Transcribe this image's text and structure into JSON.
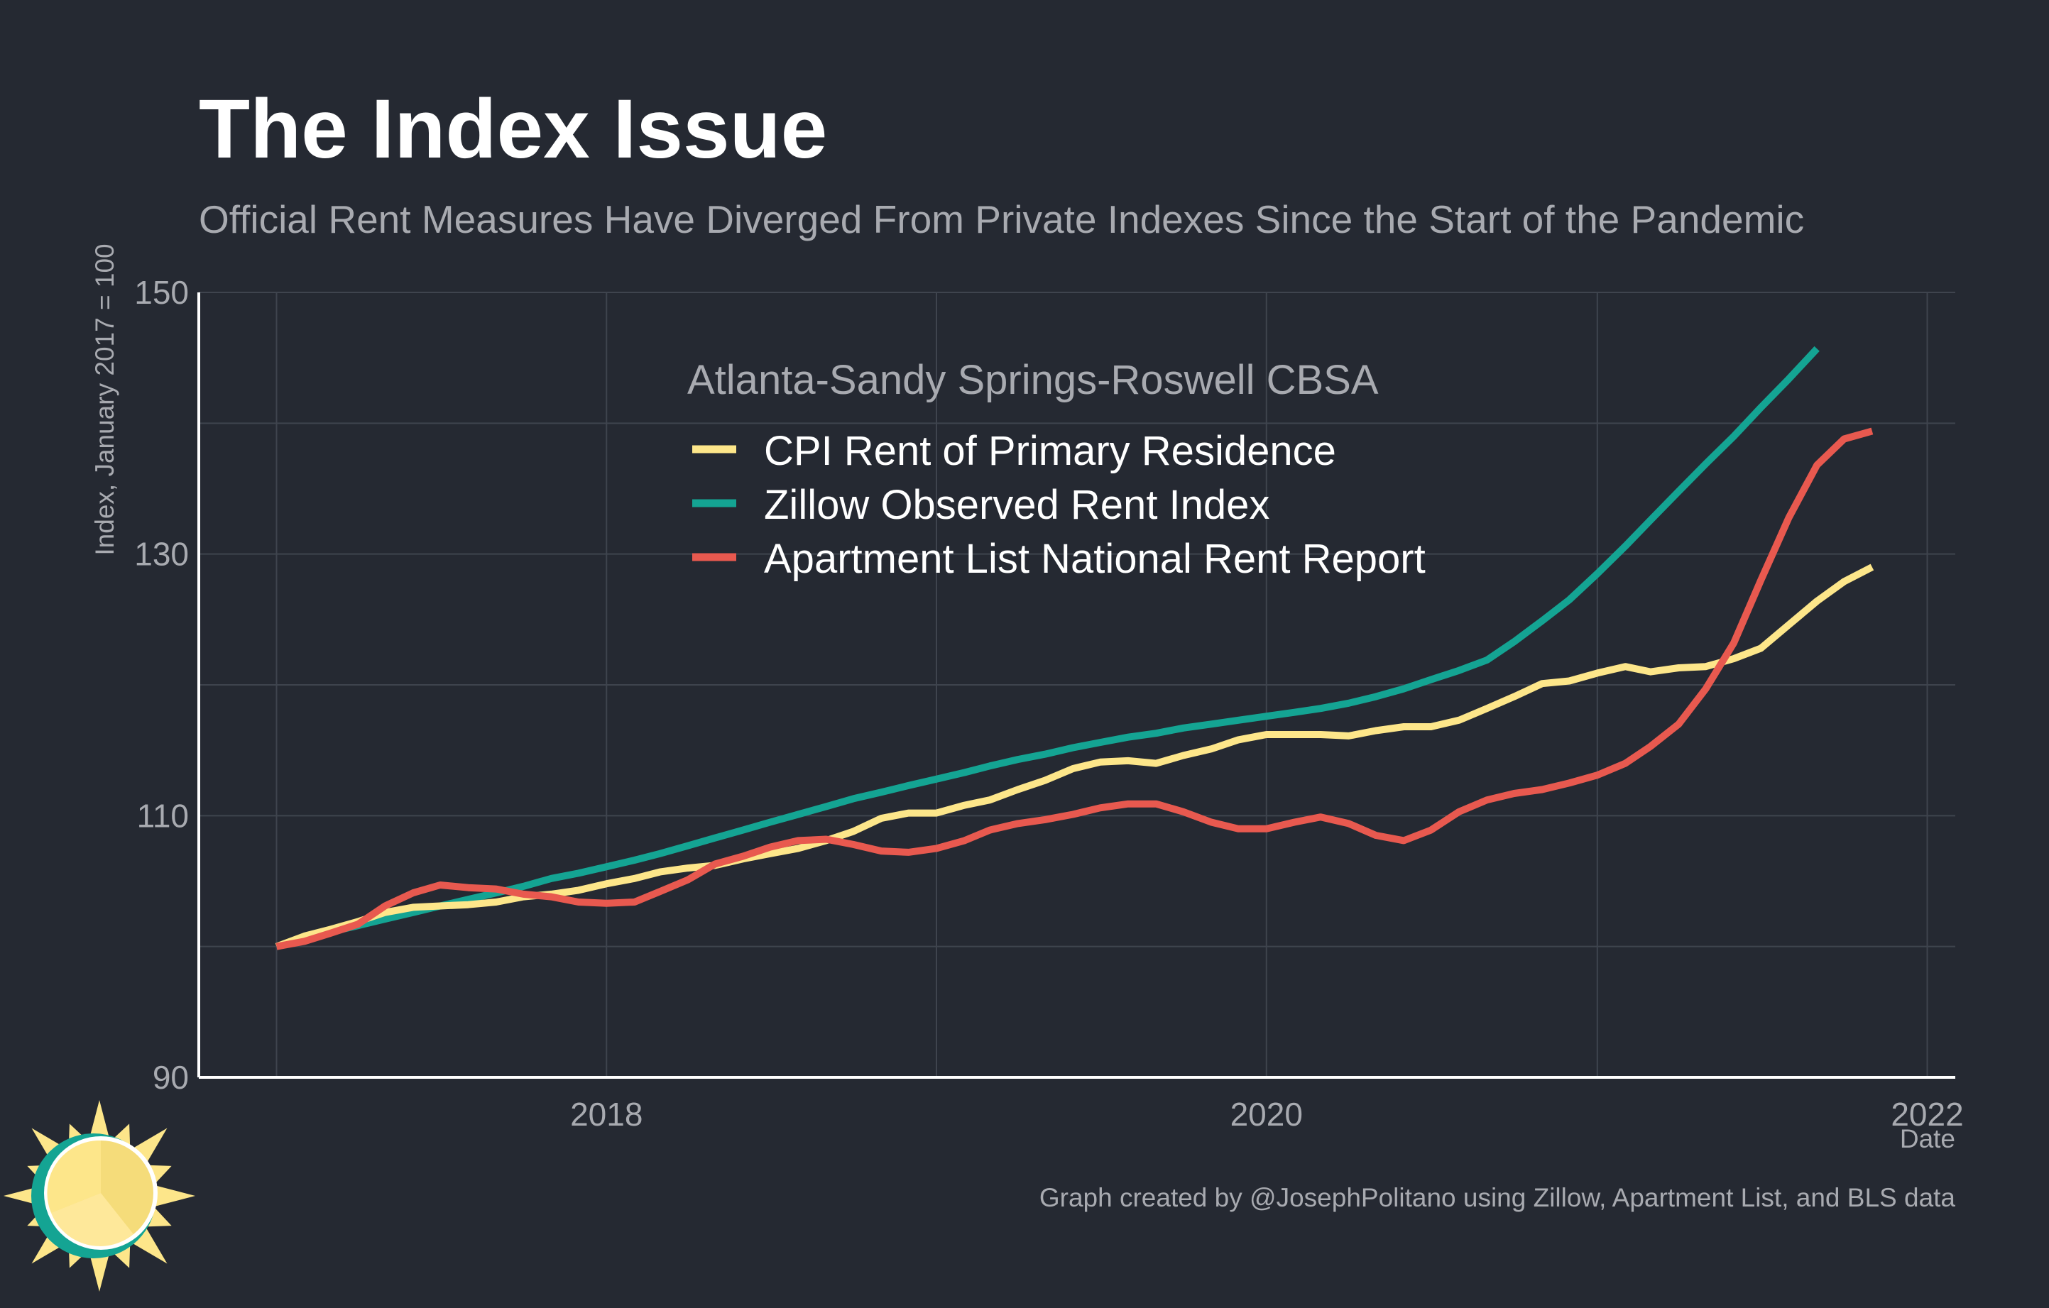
{
  "colors": {
    "background": "#252932",
    "grid": "#3f444e",
    "axis": "#ffffff",
    "title": "#ffffff",
    "muted": "#a8aab0",
    "legend_text": "#ffffff",
    "cpi": "#fde68a",
    "zillow": "#14a493",
    "apartment": "#e8594f",
    "logo_sun": "#fde68a",
    "logo_teal": "#14a493"
  },
  "logo": {
    "icon": "sun-icon"
  },
  "chart_data": {
    "type": "line",
    "title": "The Index Issue",
    "subtitle": "Official Rent Measures Have Diverged From Private Indexes Since the Start of the Pandemic",
    "legend_title": "Atlanta-Sandy Springs-Roswell CBSA",
    "xlabel": "Date",
    "ylabel": "Index, January 2017 = 100",
    "caption": "Graph created by @JosephPolitano using Zillow, Apartment List, and BLS data",
    "xlim": [
      "2016-10-07",
      "2022-02-01"
    ],
    "ylim": [
      90,
      150
    ],
    "x_ticks": [
      {
        "date": "2018-01-01",
        "label": "2018"
      },
      {
        "date": "2020-01-01",
        "label": "2020"
      },
      {
        "date": "2022-01-01",
        "label": "2022"
      }
    ],
    "y_ticks": [
      90,
      110,
      130,
      150
    ],
    "grid": true,
    "legend_position": "top-center",
    "start": "2017-01",
    "series": [
      {
        "name": "CPI Rent of Primary Residence",
        "color_key": "cpi",
        "values": [
          100.0,
          100.8,
          101.3,
          101.9,
          102.6,
          103.0,
          103.1,
          103.2,
          103.4,
          103.8,
          104.0,
          104.3,
          104.8,
          105.2,
          105.7,
          106.0,
          106.2,
          106.7,
          107.1,
          107.5,
          108.1,
          108.8,
          109.8,
          110.2,
          110.2,
          110.8,
          111.2,
          112.0,
          112.7,
          113.6,
          114.1,
          114.2,
          114.0,
          114.6,
          115.1,
          115.8,
          116.2,
          116.2,
          116.2,
          116.1,
          116.5,
          116.8,
          116.8,
          117.3,
          118.2,
          119.1,
          120.1,
          120.3,
          120.9,
          121.4,
          121.0,
          121.3,
          121.4,
          122.0,
          122.8,
          124.6,
          126.4,
          127.9,
          129.0
        ]
      },
      {
        "name": "Zillow Observed Rent Index",
        "color_key": "zillow",
        "values": [
          100.0,
          100.6,
          101.1,
          101.6,
          102.1,
          102.6,
          103.1,
          103.6,
          104.1,
          104.6,
          105.2,
          105.6,
          106.1,
          106.6,
          107.1,
          107.7,
          108.3,
          108.9,
          109.5,
          110.1,
          110.7,
          111.3,
          111.8,
          112.3,
          112.8,
          113.3,
          113.8,
          114.3,
          114.7,
          115.2,
          115.6,
          116.0,
          116.3,
          116.7,
          117.0,
          117.3,
          117.6,
          117.9,
          118.2,
          118.6,
          119.1,
          119.7,
          120.4,
          121.1,
          121.9,
          123.3,
          124.9,
          126.5,
          128.5,
          130.6,
          132.6,
          134.8,
          136.9,
          139.0,
          141.2,
          143.4,
          145.7
        ]
      },
      {
        "name": "Apartment List National Rent Report",
        "color_key": "apartment",
        "values": [
          100.0,
          100.4,
          101.0,
          101.7,
          103.1,
          104.1,
          104.7,
          104.5,
          104.4,
          104.0,
          103.8,
          103.4,
          103.3,
          103.4,
          104.2,
          105.1,
          106.3,
          106.9,
          107.6,
          108.1,
          108.2,
          107.8,
          107.3,
          107.2,
          107.5,
          108.1,
          108.9,
          109.4,
          109.7,
          110.1,
          110.6,
          110.9,
          110.9,
          110.3,
          109.5,
          109.0,
          109.0,
          109.5,
          109.9,
          109.4,
          108.5,
          108.1,
          108.9,
          110.3,
          111.2,
          111.7,
          112.0,
          112.5,
          113.1,
          114.0,
          115.3,
          117.0,
          119.7,
          123.2,
          128.0,
          132.8,
          136.8,
          138.8,
          139.4
        ]
      }
    ]
  }
}
